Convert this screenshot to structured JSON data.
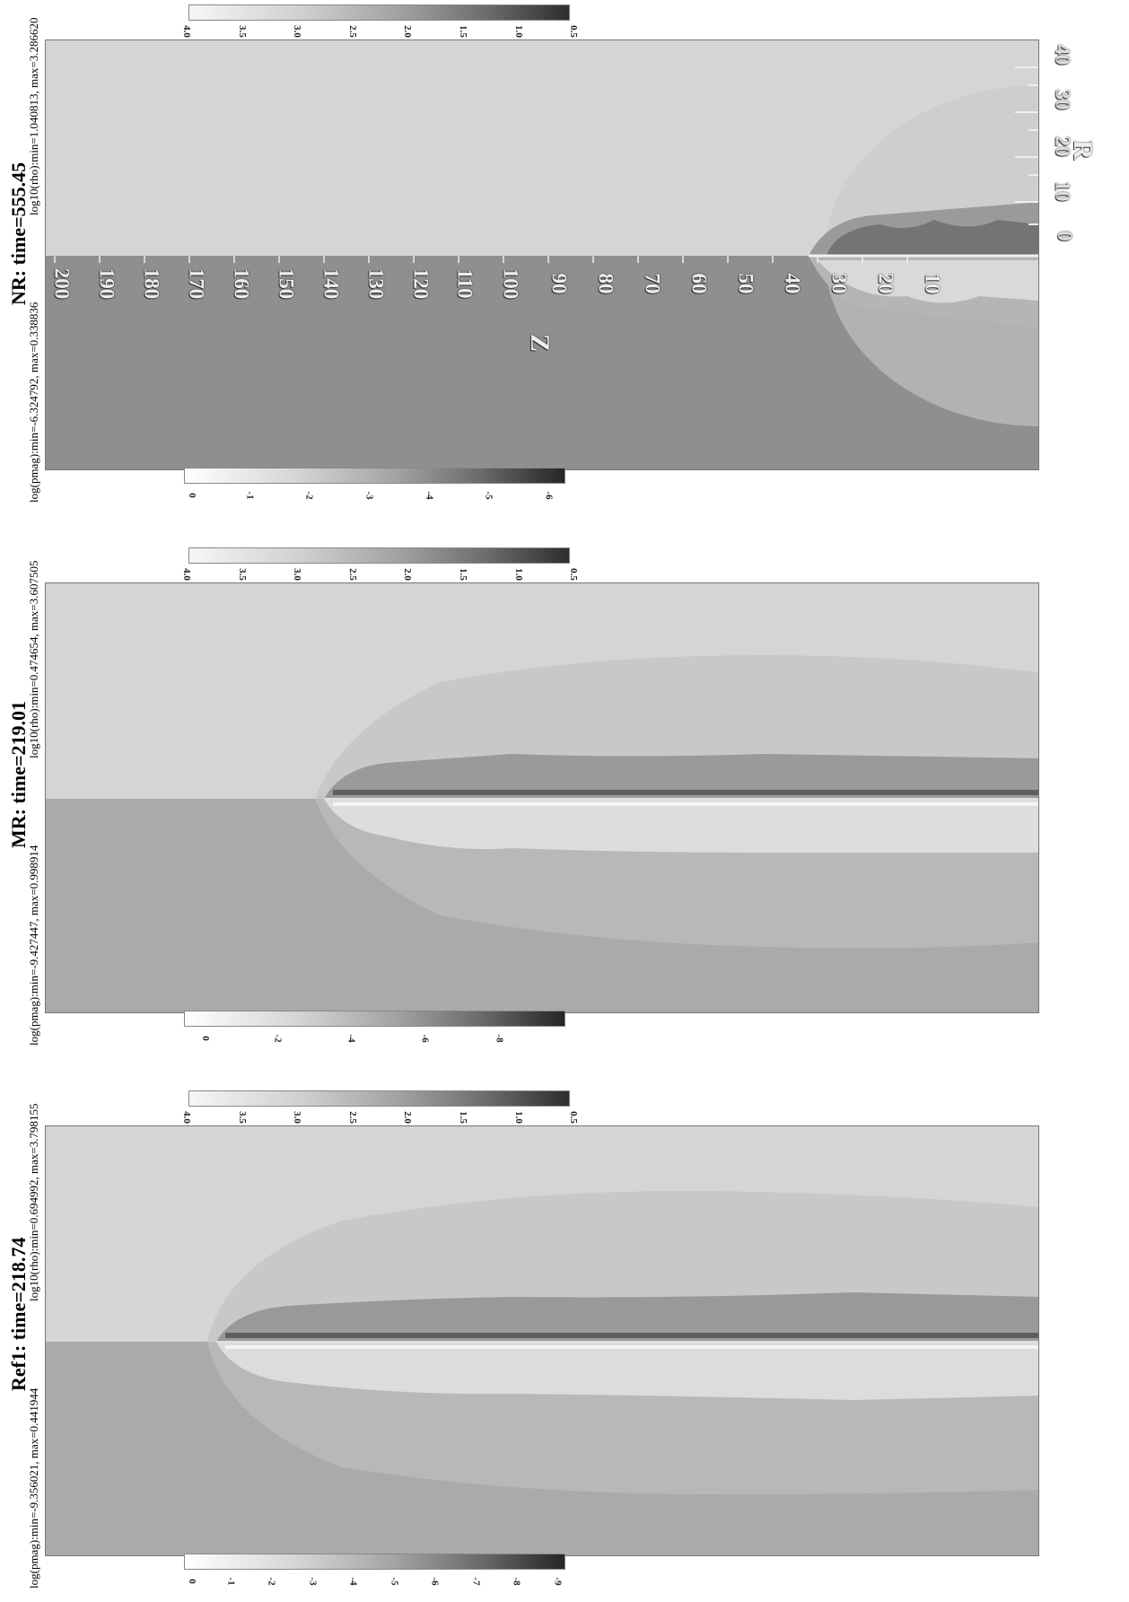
{
  "panels": [
    {
      "title": "NR: time=555.45",
      "pmag_info": "log(pmag):min=-6.324792, max=0.338836",
      "rho_info": "log10(rho):min=1.040813, max=3.286620",
      "rho_ticks": [
        "4.0",
        "3.5",
        "3.0",
        "2.5",
        "2.0",
        "1.5",
        "1.0",
        "0.5"
      ],
      "pmag_ticks": [
        "0",
        "-1",
        "-2",
        "-3",
        "-4",
        "-5",
        "-6"
      ],
      "z_ticks": [
        "200",
        "190",
        "180",
        "170",
        "160",
        "150",
        "140",
        "130",
        "120",
        "110",
        "100",
        "90",
        "80",
        "70",
        "60",
        "50",
        "40",
        "30",
        "20",
        "10"
      ],
      "z_label": "Z",
      "r_ticks": [
        "0",
        "10",
        "20",
        "30",
        "40"
      ],
      "r_label": "R"
    },
    {
      "title": "MR: time=219.01",
      "pmag_info": "log(pmag):min=-9.427447, max=0.998914",
      "rho_info": "log10(rho):min=0.474654, max=3.607505",
      "rho_ticks": [
        "4.0",
        "3.5",
        "3.0",
        "2.5",
        "2.0",
        "1.5",
        "1.0",
        "0.5"
      ],
      "pmag_ticks": [
        "0",
        "-2",
        "-4",
        "-6",
        "-8"
      ]
    },
    {
      "title": "Ref1: time=218.74",
      "pmag_info": "log(pmag):min=-9.356021, max=0.441944",
      "rho_info": "log10(rho):min=0.694992, max=3.798155",
      "rho_ticks": [
        "4.0",
        "3.5",
        "3.0",
        "2.5",
        "2.0",
        "1.5",
        "1.0",
        "0.5"
      ],
      "pmag_ticks": [
        "0",
        "-1",
        "-2",
        "-3",
        "-4",
        "-5",
        "-6",
        "-7",
        "-8",
        "-9"
      ]
    }
  ]
}
